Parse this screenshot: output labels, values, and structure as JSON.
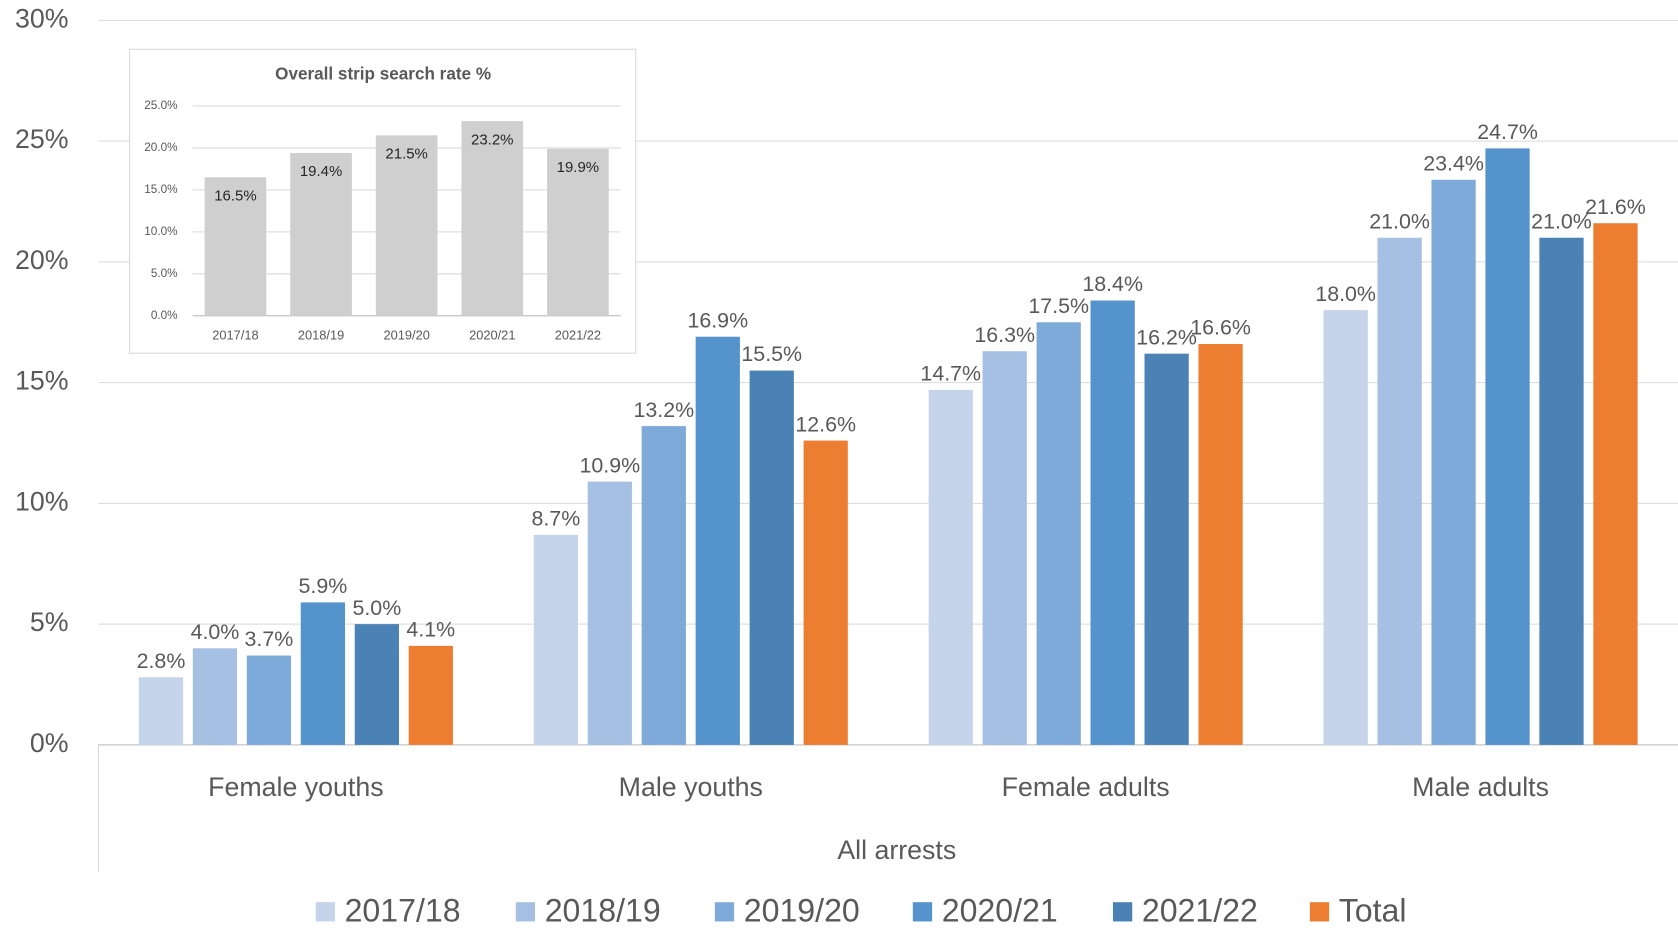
{
  "chart_data": [
    {
      "type": "bar",
      "xlabel": "All arrests",
      "categories": [
        "Female youths",
        "Male youths",
        "Female adults",
        "Male adults"
      ],
      "series": [
        {
          "name": "2017/18",
          "color": "#c5d4ea",
          "values": [
            2.8,
            8.7,
            14.7,
            18.0
          ],
          "value_labels": [
            "2.8%",
            "8.7%",
            "14.7%",
            "18.0%"
          ]
        },
        {
          "name": "2018/19",
          "color": "#a6c0e4",
          "values": [
            4.0,
            10.9,
            16.3,
            21.0
          ],
          "value_labels": [
            "4.0%",
            "10.9%",
            "16.3%",
            "21.0%"
          ]
        },
        {
          "name": "2019/20",
          "color": "#7eaad9",
          "values": [
            3.7,
            13.2,
            17.5,
            23.4
          ],
          "value_labels": [
            "3.7%",
            "13.2%",
            "17.5%",
            "23.4%"
          ]
        },
        {
          "name": "2020/21",
          "color": "#5593cc",
          "values": [
            5.9,
            16.9,
            18.4,
            24.7
          ],
          "value_labels": [
            "5.9%",
            "16.9%",
            "18.4%",
            "24.7%"
          ]
        },
        {
          "name": "2021/22",
          "color": "#4a82b5",
          "values": [
            5.0,
            15.5,
            16.2,
            21.0
          ],
          "value_labels": [
            "5.0%",
            "15.5%",
            "16.2%",
            "21.0%"
          ]
        },
        {
          "name": "Total",
          "color": "#ed7d31",
          "values": [
            4.1,
            12.6,
            16.6,
            21.6
          ],
          "value_labels": [
            "4.1%",
            "12.6%",
            "16.6%",
            "21.6%"
          ]
        }
      ],
      "ylim": [
        0,
        30
      ],
      "yticks": [
        {
          "value": 0,
          "label": "0%"
        },
        {
          "value": 5,
          "label": "5%"
        },
        {
          "value": 10,
          "label": "10%"
        },
        {
          "value": 15,
          "label": "15%"
        },
        {
          "value": 20,
          "label": "20%"
        },
        {
          "value": 25,
          "label": "25%"
        },
        {
          "value": 30,
          "label": "30%"
        }
      ],
      "grid": true,
      "legend": "bottom"
    },
    {
      "type": "bar",
      "title": "Overall strip search rate %",
      "categories": [
        "2017/18",
        "2018/19",
        "2019/20",
        "2020/21",
        "2021/22"
      ],
      "values": [
        16.5,
        19.4,
        21.5,
        23.2,
        19.9
      ],
      "value_labels": [
        "16.5%",
        "19.4%",
        "21.5%",
        "23.2%",
        "19.9%"
      ],
      "color": "#d0cfcf",
      "ylim": [
        0,
        25
      ],
      "yticks": [
        {
          "value": 0,
          "label": "0.0%"
        },
        {
          "value": 5,
          "label": "5.0%"
        },
        {
          "value": 10,
          "label": "10.0%"
        },
        {
          "value": 15,
          "label": "15.0%"
        },
        {
          "value": 20,
          "label": "20.0%"
        },
        {
          "value": 25,
          "label": "25.0%"
        }
      ],
      "grid": true
    }
  ]
}
